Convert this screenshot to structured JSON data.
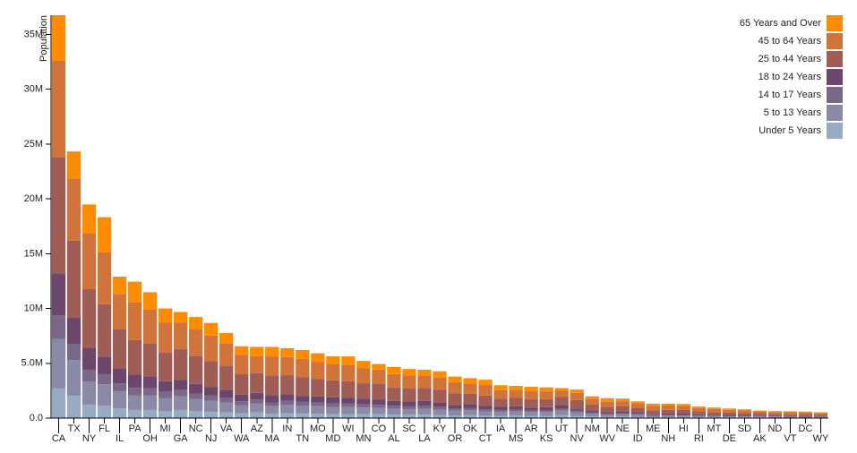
{
  "chart_data": {
    "type": "stacked-bar",
    "y_label": "Population",
    "categories": [
      "CA",
      "TX",
      "NY",
      "FL",
      "IL",
      "PA",
      "OH",
      "MI",
      "GA",
      "NC",
      "NJ",
      "VA",
      "WA",
      "AZ",
      "MA",
      "IN",
      "TN",
      "MO",
      "MD",
      "WI",
      "MN",
      "CO",
      "AL",
      "SC",
      "LA",
      "KY",
      "OR",
      "OK",
      "CT",
      "IA",
      "MS",
      "AR",
      "KS",
      "UT",
      "NV",
      "NM",
      "WV",
      "NE",
      "ID",
      "ME",
      "NH",
      "HI",
      "RI",
      "MT",
      "DE",
      "SD",
      "AK",
      "ND",
      "VT",
      "DC",
      "WY"
    ],
    "series": [
      {
        "name": "Under 5 Years",
        "color": "#98abc5",
        "values": [
          2704659,
          2027307,
          1208495,
          1140516,
          894368,
          737462,
          743750,
          625526,
          740521,
          652823,
          557421,
          522672,
          433119,
          515910,
          383568,
          443089,
          416334,
          399450,
          371787,
          362277,
          358471,
          358280,
          310504,
          303024,
          310716,
          284601,
          243483,
          266547,
          211637,
          201321,
          220813,
          202070,
          202529,
          268916,
          199175,
          148323,
          105435,
          132092,
          121746,
          71459,
          75297,
          87207,
          60934,
          61114,
          59319,
          58566,
          52083,
          41896,
          32635,
          36352,
          38253
        ]
      },
      {
        "name": "5 to 13 Years",
        "color": "#8a89a6",
        "values": [
          4499890,
          3277946,
          2141490,
          1938695,
          1558919,
          1345341,
          1340492,
          1179503,
          1250460,
          1097890,
          1011656,
          887525,
          750274,
          828669,
          701752,
          780199,
          725948,
          690476,
          651923,
          640286,
          606802,
          587154,
          552339,
          517803,
          542341,
          493536,
          424167,
          438926,
          403658,
          345409,
          371502,
          343207,
          342134,
          413034,
          325650,
          241326,
          189649,
          215265,
          201192,
          133656,
          144235,
          134025,
          111408,
          106088,
          99496,
          94438,
          85640,
          67358,
          62538,
          50439,
          60890
        ]
      },
      {
        "name": "14 to 17 Years",
        "color": "#7b6888",
        "values": [
          2159981,
          1420518,
          1058031,
          925060,
          725973,
          679201,
          646135,
          585169,
          557860,
          492964,
          478505,
          413004,
          357782,
          362642,
          341713,
          361393,
          336312,
          331543,
          316873,
          311849,
          289371,
          261701,
          259034,
          245400,
          254916,
          229927,
          199925,
          200562,
          196918,
          165883,
          174405,
          157204,
          155822,
          167685,
          142976,
          112801,
          91074,
          99638,
          89702,
          69752,
          73826,
          64011,
          56198,
          53156,
          47414,
          45305,
          42153,
          33794,
          33757,
          25225,
          29314
        ]
      },
      {
        "name": "18 to 24 Years",
        "color": "#6b486b",
        "values": [
          3853788,
          2454721,
          1999120,
          1607297,
          1311479,
          1203944,
          1081734,
          974480,
          919876,
          883397,
          769321,
          768475,
          610378,
          601943,
          665879,
          605863,
          550612,
          560463,
          543470,
          553914,
          507289,
          466194,
          450818,
          438147,
          471275,
          381394,
          338162,
          369916,
          325110,
          306398,
          305964,
          264160,
          293114,
          329585,
          212379,
          203097,
          157989,
          186657,
          147606,
          112682,
          119114,
          124834,
          114502,
          95232,
          84464,
          82869,
          74257,
          82629,
          61679,
          75569,
          53980
        ]
      },
      {
        "name": "25 to 44 Years",
        "color": "#a05d56",
        "values": [
          10604510,
          7017731,
          5355235,
          4782119,
          3596343,
          3157759,
          3019147,
          2628322,
          2846985,
          2575603,
          2379649,
          2203286,
          1850983,
          1804762,
          1782449,
          1724528,
          1719433,
          1569626,
          1556225,
          1487457,
          1416063,
          1464939,
          1231572,
          1193112,
          1162463,
          1179637,
          1044056,
          957085,
          916955,
          750505,
          764203,
          754420,
          728166,
          772024,
          769913,
          517154,
          470749,
          457177,
          406247,
          331809,
          345109,
          356237,
          277779,
          236297,
          230183,
          196738,
          198724,
          154913,
          155419,
          193557,
          137338
        ]
      },
      {
        "name": "45 to 64 Years",
        "color": "#d0743c",
        "values": [
          8819342,
          5656528,
          5120254,
          4746856,
          3239173,
          3414001,
          3083815,
          2706100,
          2389018,
          2380685,
          2335168,
          2033550,
          1762811,
          1523681,
          1751508,
          1647881,
          1646623,
          1554812,
          1513754,
          1522038,
          1391878,
          1290094,
          1215966,
          1186019,
          1128771,
          1134283,
          1036269,
          918688,
          968967,
          788485,
          730133,
          727124,
          713663,
          538978,
          653357,
          501604,
          514505,
          451756,
          375173,
          397911,
          388250,
          331817,
          282321,
          278241,
          230528,
          210178,
          183159,
          166615,
          188593,
          140043,
          147279
        ]
      },
      {
        "name": "65 Years and Over",
        "color": "#ff8c00",
        "values": [
          4114496,
          2472223,
          2607672,
          3187797,
          1575308,
          1910571,
          1570837,
          1304322,
          981024,
          1139052,
          1150941,
          940577,
          783877,
          862573,
          871098,
          813839,
          819626,
          805235,
          679565,
          750146,
          650519,
          511094,
          641667,
          596295,
          540314,
          565867,
          503998,
          490637,
          478007,
          444554,
          371315,
          407205,
          366706,
          246202,
          296717,
          260051,
          285067,
          240847,
          182150,
          199187,
          169978,
          190067,
          147646,
          137312,
          121688,
          116100,
          50277,
          94276,
          86649,
          70648,
          65614
        ]
      }
    ],
    "ylim": [
      0,
      36756666
    ],
    "yticks": [
      {
        "value": 0,
        "label": "0.0"
      },
      {
        "value": 5000000,
        "label": "5.0M"
      },
      {
        "value": 10000000,
        "label": "10M"
      },
      {
        "value": 15000000,
        "label": "15M"
      },
      {
        "value": 20000000,
        "label": "20M"
      },
      {
        "value": 25000000,
        "label": "25M"
      },
      {
        "value": 30000000,
        "label": "30M"
      },
      {
        "value": 35000000,
        "label": "35M"
      }
    ],
    "legend": "top-right"
  }
}
